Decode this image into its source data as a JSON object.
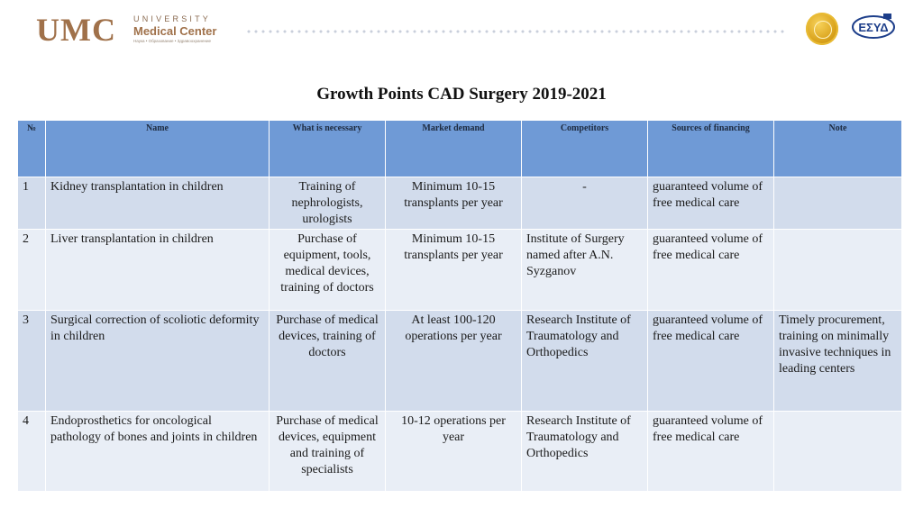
{
  "header": {
    "logo_mark": "UMC",
    "logo_university": "UNIVERSITY",
    "logo_medical_center": "Medical Center",
    "logo_tagline": "Наука • Образование • Здравоохранение",
    "esyd_label": "ΕΣΥΔ"
  },
  "title": "Growth Points CAD Surgery 2019-2021",
  "table": {
    "columns": [
      "№",
      "Name",
      "What is necessary",
      "Market demand",
      "Competitors",
      "Sources of financing",
      "Note"
    ],
    "rows": [
      {
        "num": "1",
        "name": "Kidney transplantation in children",
        "necessary": "Training of nephrologists, urologists",
        "demand": "Minimum 10-15 transplants per year",
        "competitors": "-",
        "financing": "guaranteed volume of free medical care",
        "note": ""
      },
      {
        "num": "2",
        "name": "Liver transplantation in children",
        "necessary": "Purchase of equipment, tools, medical devices, training of doctors",
        "demand": "Minimum 10-15 transplants per year",
        "competitors": "Institute of Surgery named after A.N. Syzganov",
        "financing": "guaranteed volume of free medical care",
        "note": ""
      },
      {
        "num": "3",
        "name": "Surgical correction of scoliotic deformity in children",
        "necessary": "Purchase of medical devices, training of doctors",
        "demand": "At least 100-120 operations per year",
        "competitors": "Research Institute of Traumatology and Orthopedics",
        "financing": "guaranteed volume of free medical care",
        "note": "Timely procurement, training on minimally invasive techniques in leading centers"
      },
      {
        "num": "4",
        "name": "Endoprosthetics for oncological pathology of bones and joints in children",
        "necessary": "Purchase of medical devices, equipment and training of specialists",
        "demand": "10-12 operations per year",
        "competitors": "Research Institute of Traumatology and Orthopedics",
        "financing": "guaranteed volume of free medical care",
        "note": ""
      }
    ]
  }
}
